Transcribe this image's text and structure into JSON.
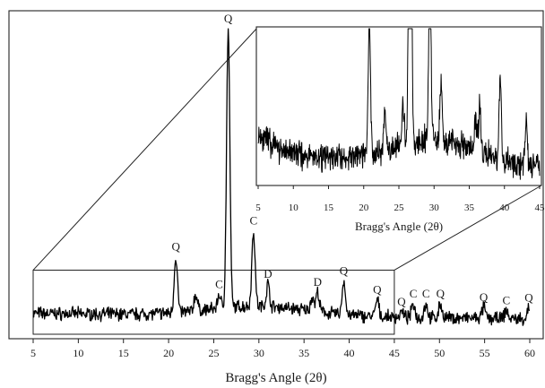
{
  "chart_data": [
    {
      "type": "line",
      "xlabel": "Bragg's Angle (2θ)",
      "ylabel": "",
      "xlim": [
        5,
        60
      ],
      "x_ticks": [
        "5",
        "10",
        "15",
        "20",
        "25",
        "30",
        "35",
        "40",
        "45",
        "50",
        "55",
        "60"
      ],
      "y_ticks_shown": false,
      "baseline_level": 0.1,
      "peaks": [
        {
          "x": 20.8,
          "height": 0.2,
          "label": "Q"
        },
        {
          "x": 23.0,
          "height": 0.06,
          "label": ""
        },
        {
          "x": 25.6,
          "height": 0.05,
          "label": "C"
        },
        {
          "x": 26.6,
          "height": 1.0,
          "label": "Q"
        },
        {
          "x": 29.4,
          "height": 0.27,
          "label": "C"
        },
        {
          "x": 31.0,
          "height": 0.08,
          "label": "D"
        },
        {
          "x": 35.9,
          "height": 0.05,
          "label": ""
        },
        {
          "x": 36.5,
          "height": 0.07,
          "label": "D"
        },
        {
          "x": 39.4,
          "height": 0.12,
          "label": "Q"
        },
        {
          "x": 43.1,
          "height": 0.06,
          "label": "Q"
        },
        {
          "x": 45.8,
          "height": 0.02,
          "label": "Q"
        },
        {
          "x": 47.1,
          "height": 0.05,
          "label": "C"
        },
        {
          "x": 48.5,
          "height": 0.05,
          "label": "C"
        },
        {
          "x": 50.1,
          "height": 0.05,
          "label": "Q"
        },
        {
          "x": 54.9,
          "height": 0.04,
          "label": "Q"
        },
        {
          "x": 57.4,
          "height": 0.03,
          "label": "C"
        },
        {
          "x": 59.9,
          "height": 0.04,
          "label": "Q"
        }
      ],
      "zoom_region": {
        "x_start": 5,
        "x_end": 45,
        "y_max": 0.23
      }
    },
    {
      "type": "line",
      "xlabel": "Bragg's Angle (2θ)",
      "xlim": [
        5,
        45
      ],
      "x_ticks": [
        "5",
        "10",
        "15",
        "20",
        "25",
        "30",
        "35",
        "40",
        "45"
      ],
      "y_ticks_shown": false,
      "note": "zoomed view of the main pattern between 5 and 45 degrees"
    }
  ]
}
